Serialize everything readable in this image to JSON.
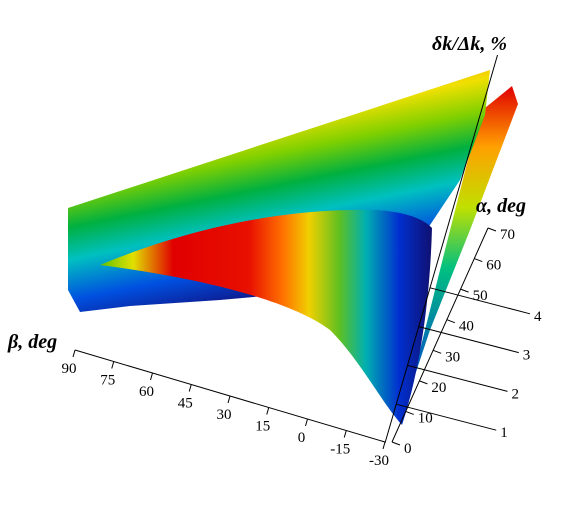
{
  "chart_data": {
    "type": "surface3d",
    "x_label": "β, deg",
    "y_label": "α, deg",
    "z_label": "δk/Δk, %",
    "xlim": [
      -30,
      90
    ],
    "xticks": [
      90,
      75,
      60,
      45,
      30,
      15,
      0,
      -15,
      -30
    ],
    "ylim": [
      0,
      70
    ],
    "yticks": [
      0,
      10,
      20,
      30,
      40,
      50,
      60,
      70
    ],
    "zlim": [
      0,
      10
    ],
    "zticks": [
      1,
      2,
      3,
      4
    ]
  }
}
